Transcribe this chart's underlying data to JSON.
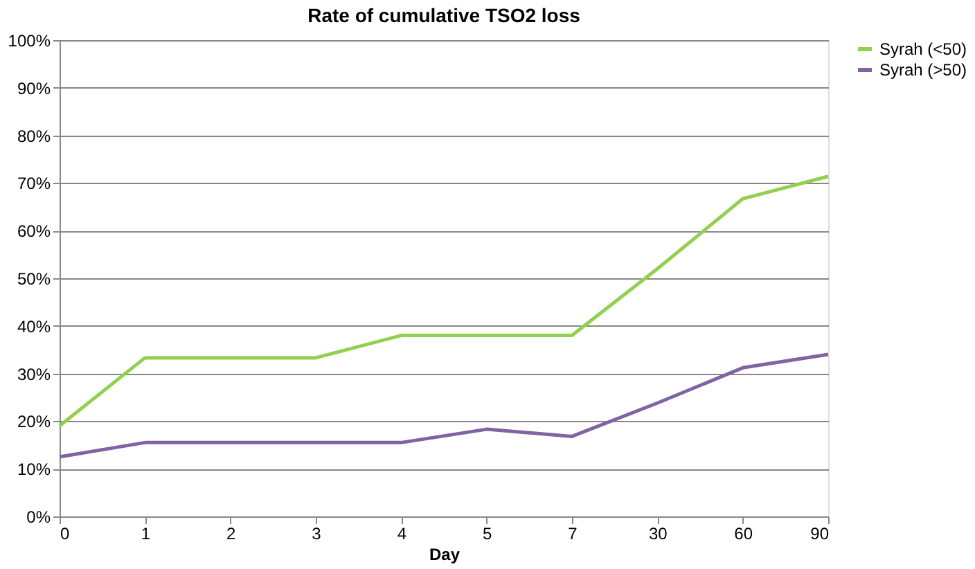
{
  "chart_data": {
    "type": "line",
    "title": "Rate of cumulative TSO2 loss",
    "xlabel": "Day",
    "categories": [
      "0",
      "1",
      "2",
      "3",
      "4",
      "5",
      "7",
      "30",
      "60",
      "90"
    ],
    "series": [
      {
        "name": "Syrah (<50)",
        "color": "#92d050",
        "values": [
          19,
          33.3,
          33.3,
          33.3,
          38,
          38,
          38,
          52,
          66.7,
          71.4
        ]
      },
      {
        "name": "Syrah (>50)",
        "color": "#8064a2",
        "values": [
          12.5,
          15.5,
          15.5,
          15.5,
          15.5,
          18.3,
          16.8,
          23.8,
          31.2,
          34
        ]
      }
    ],
    "ylim": [
      0,
      100
    ],
    "yticks": [
      {
        "value": 0,
        "label": "0%"
      },
      {
        "value": 10,
        "label": "10%"
      },
      {
        "value": 20,
        "label": "20%"
      },
      {
        "value": 30,
        "label": "30%"
      },
      {
        "value": 40,
        "label": "40%"
      },
      {
        "value": 50,
        "label": "50%"
      },
      {
        "value": 60,
        "label": "60%"
      },
      {
        "value": 70,
        "label": "70%"
      },
      {
        "value": 80,
        "label": "80%"
      },
      {
        "value": 90,
        "label": "90%"
      },
      {
        "value": 100,
        "label": "100%"
      }
    ],
    "grid": "y",
    "legend": "right",
    "marker": "none",
    "line_style": "solid"
  }
}
